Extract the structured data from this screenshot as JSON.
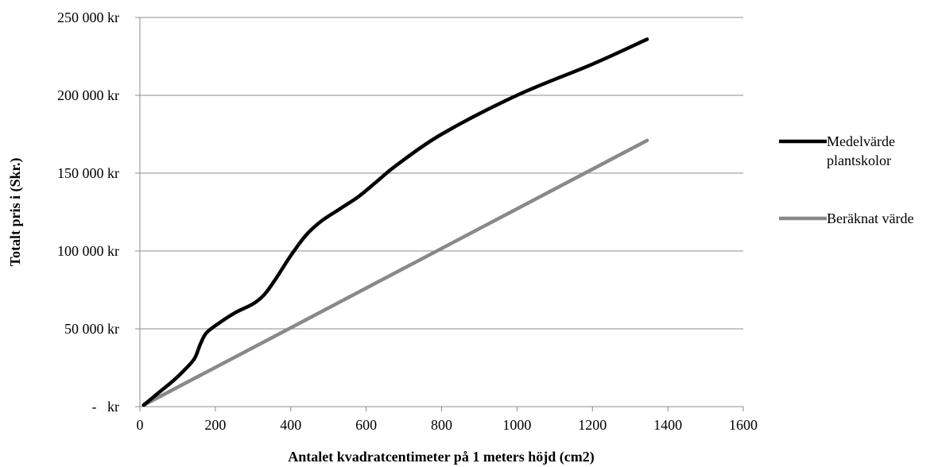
{
  "chart_data": {
    "type": "line",
    "title": "",
    "xlabel": "Antalet kvadratcentimeter på 1 meters höjd (cm2)",
    "ylabel": "Totalt pris i (Skr.)",
    "xlim": [
      0,
      1600
    ],
    "ylim": [
      0,
      250000
    ],
    "x_ticks": [
      0,
      200,
      400,
      600,
      800,
      1000,
      1200,
      1400,
      1600
    ],
    "x_tick_labels": [
      "0",
      "200",
      "400",
      "600",
      "800",
      "1000",
      "1200",
      "1400",
      "1600"
    ],
    "y_ticks": [
      0,
      50000,
      100000,
      150000,
      200000,
      250000
    ],
    "y_tick_labels": [
      "-   kr",
      "50 000 kr",
      "100 000 kr",
      "150 000 kr",
      "200 000 kr",
      "250 000 kr"
    ],
    "grid": "horizontal",
    "legend_position": "right",
    "series": [
      {
        "name": "Medelvärde plantskolor",
        "legend_lines": [
          "Medelvärde",
          "plantskolor"
        ],
        "color": "#000000",
        "points": [
          [
            10,
            1000
          ],
          [
            30,
            5000
          ],
          [
            60,
            11000
          ],
          [
            90,
            17000
          ],
          [
            120,
            24000
          ],
          [
            145,
            31000
          ],
          [
            160,
            40000
          ],
          [
            175,
            47000
          ],
          [
            200,
            52000
          ],
          [
            250,
            60000
          ],
          [
            300,
            66000
          ],
          [
            330,
            72000
          ],
          [
            360,
            82000
          ],
          [
            400,
            97000
          ],
          [
            440,
            110000
          ],
          [
            480,
            119000
          ],
          [
            530,
            127000
          ],
          [
            580,
            135000
          ],
          [
            630,
            145000
          ],
          [
            680,
            155000
          ],
          [
            800,
            175000
          ],
          [
            1000,
            200000
          ],
          [
            1200,
            220000
          ],
          [
            1345,
            236000
          ]
        ]
      },
      {
        "name": "Beräknat värde",
        "legend_lines": [
          "Beräknat värde"
        ],
        "color": "#898989",
        "points": [
          [
            10,
            1000
          ],
          [
            1345,
            171000
          ]
        ]
      }
    ]
  }
}
